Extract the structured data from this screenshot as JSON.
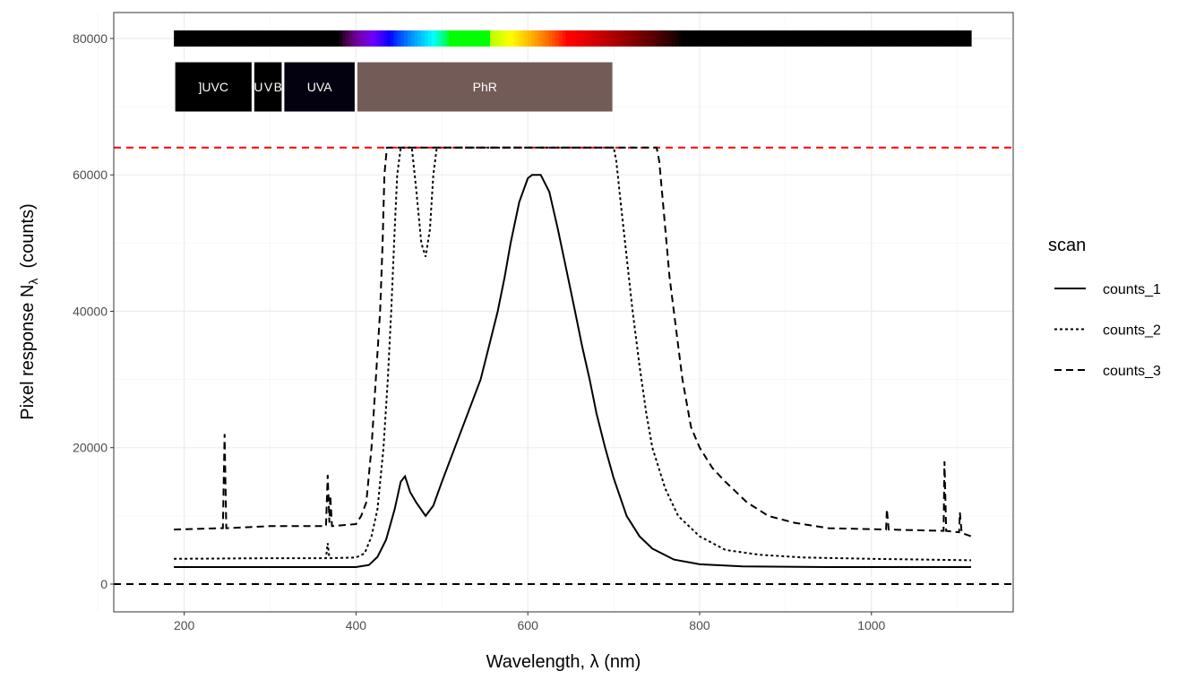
{
  "chart_data": {
    "type": "line",
    "xlabel": "Wavelength, λ (nm)",
    "ylabel_main": "Pixel  response  N",
    "ylabel_sub": "λ",
    "ylabel_unit": "  (counts)",
    "xlim": [
      118,
      1165
    ],
    "ylim": [
      -4070,
      83800
    ],
    "xticks": [
      200,
      400,
      600,
      800,
      1000
    ],
    "yticks": [
      0,
      20000,
      40000,
      60000,
      80000
    ],
    "grid": true,
    "legend": {
      "title": "scan",
      "placement": "right"
    },
    "hlines": [
      {
        "y": 64000,
        "color": "#ff0000",
        "style": "dashed"
      },
      {
        "y": 0,
        "color": "#000000",
        "style": "dashed"
      }
    ],
    "spectrum_bar": {
      "y": 80000,
      "range": [
        188,
        1116
      ]
    },
    "wavebands": [
      {
        "label": "]UVC",
        "from": 188,
        "to": 280,
        "color": "#000000"
      },
      {
        "label": "UVB",
        "from": 280,
        "to": 315,
        "color": "#000000"
      },
      {
        "label": "UVA",
        "from": 315,
        "to": 400,
        "color": "#03000f"
      },
      {
        "label": "PhR",
        "from": 400,
        "to": 700,
        "color": "#735b57"
      }
    ],
    "series": [
      {
        "name": "counts_1",
        "style": "solid",
        "points": [
          [
            188,
            2500
          ],
          [
            300,
            2500
          ],
          [
            400,
            2500
          ],
          [
            415,
            2800
          ],
          [
            425,
            4000
          ],
          [
            435,
            6500
          ],
          [
            445,
            11000
          ],
          [
            452,
            15000
          ],
          [
            457,
            15800
          ],
          [
            463,
            13500
          ],
          [
            470,
            12000
          ],
          [
            481,
            10000
          ],
          [
            490,
            11500
          ],
          [
            500,
            15000
          ],
          [
            515,
            20000
          ],
          [
            530,
            25000
          ],
          [
            545,
            30000
          ],
          [
            555,
            35000
          ],
          [
            565,
            40000
          ],
          [
            573,
            45000
          ],
          [
            580,
            50000
          ],
          [
            590,
            56000
          ],
          [
            600,
            59500
          ],
          [
            605,
            60000
          ],
          [
            615,
            60000
          ],
          [
            625,
            57500
          ],
          [
            635,
            52000
          ],
          [
            645,
            46000
          ],
          [
            655,
            40000
          ],
          [
            663,
            35000
          ],
          [
            672,
            30000
          ],
          [
            680,
            25000
          ],
          [
            690,
            20000
          ],
          [
            700,
            15500
          ],
          [
            715,
            10000
          ],
          [
            730,
            7000
          ],
          [
            745,
            5200
          ],
          [
            770,
            3600
          ],
          [
            800,
            2900
          ],
          [
            850,
            2600
          ],
          [
            950,
            2500
          ],
          [
            1116,
            2500
          ]
        ]
      },
      {
        "name": "counts_2",
        "style": "dotted",
        "points": [
          [
            188,
            3700
          ],
          [
            300,
            3800
          ],
          [
            365,
            3800
          ],
          [
            367,
            6000
          ],
          [
            369,
            3800
          ],
          [
            400,
            3900
          ],
          [
            410,
            4500
          ],
          [
            418,
            7000
          ],
          [
            425,
            11000
          ],
          [
            432,
            20000
          ],
          [
            437,
            30000
          ],
          [
            441,
            40000
          ],
          [
            445,
            52000
          ],
          [
            448,
            60000
          ],
          [
            452,
            64000
          ],
          [
            465,
            64000
          ],
          [
            470,
            58000
          ],
          [
            476,
            50000
          ],
          [
            481,
            48000
          ],
          [
            486,
            52000
          ],
          [
            490,
            60000
          ],
          [
            494,
            64000
          ],
          [
            700,
            64000
          ],
          [
            703,
            62000
          ],
          [
            708,
            56000
          ],
          [
            715,
            48000
          ],
          [
            722,
            40000
          ],
          [
            730,
            32000
          ],
          [
            738,
            25000
          ],
          [
            745,
            20000
          ],
          [
            760,
            14000
          ],
          [
            775,
            10000
          ],
          [
            800,
            7000
          ],
          [
            830,
            5000
          ],
          [
            870,
            4300
          ],
          [
            920,
            3900
          ],
          [
            1000,
            3700
          ],
          [
            1116,
            3500
          ]
        ]
      },
      {
        "name": "counts_3",
        "style": "dashed",
        "points": [
          [
            188,
            8000
          ],
          [
            245,
            8200
          ],
          [
            247,
            22000
          ],
          [
            249,
            8200
          ],
          [
            300,
            8500
          ],
          [
            365,
            8500
          ],
          [
            367,
            16000
          ],
          [
            369,
            9000
          ],
          [
            370,
            13000
          ],
          [
            372,
            8500
          ],
          [
            400,
            8800
          ],
          [
            406,
            10000
          ],
          [
            412,
            12000
          ],
          [
            418,
            20000
          ],
          [
            423,
            30000
          ],
          [
            428,
            40000
          ],
          [
            431,
            50000
          ],
          [
            433,
            60000
          ],
          [
            436,
            64000
          ],
          [
            750,
            64000
          ],
          [
            753,
            62000
          ],
          [
            758,
            55000
          ],
          [
            765,
            45000
          ],
          [
            770,
            40000
          ],
          [
            780,
            30000
          ],
          [
            790,
            23000
          ],
          [
            800,
            20000
          ],
          [
            815,
            17000
          ],
          [
            830,
            15000
          ],
          [
            855,
            12000
          ],
          [
            880,
            10000
          ],
          [
            910,
            9000
          ],
          [
            950,
            8200
          ],
          [
            1017,
            8000
          ],
          [
            1018,
            11000
          ],
          [
            1020,
            8000
          ],
          [
            1084,
            7800
          ],
          [
            1085,
            18000
          ],
          [
            1087,
            7800
          ],
          [
            1102,
            7600
          ],
          [
            1103,
            10500
          ],
          [
            1105,
            7500
          ],
          [
            1116,
            7000
          ]
        ]
      }
    ]
  }
}
